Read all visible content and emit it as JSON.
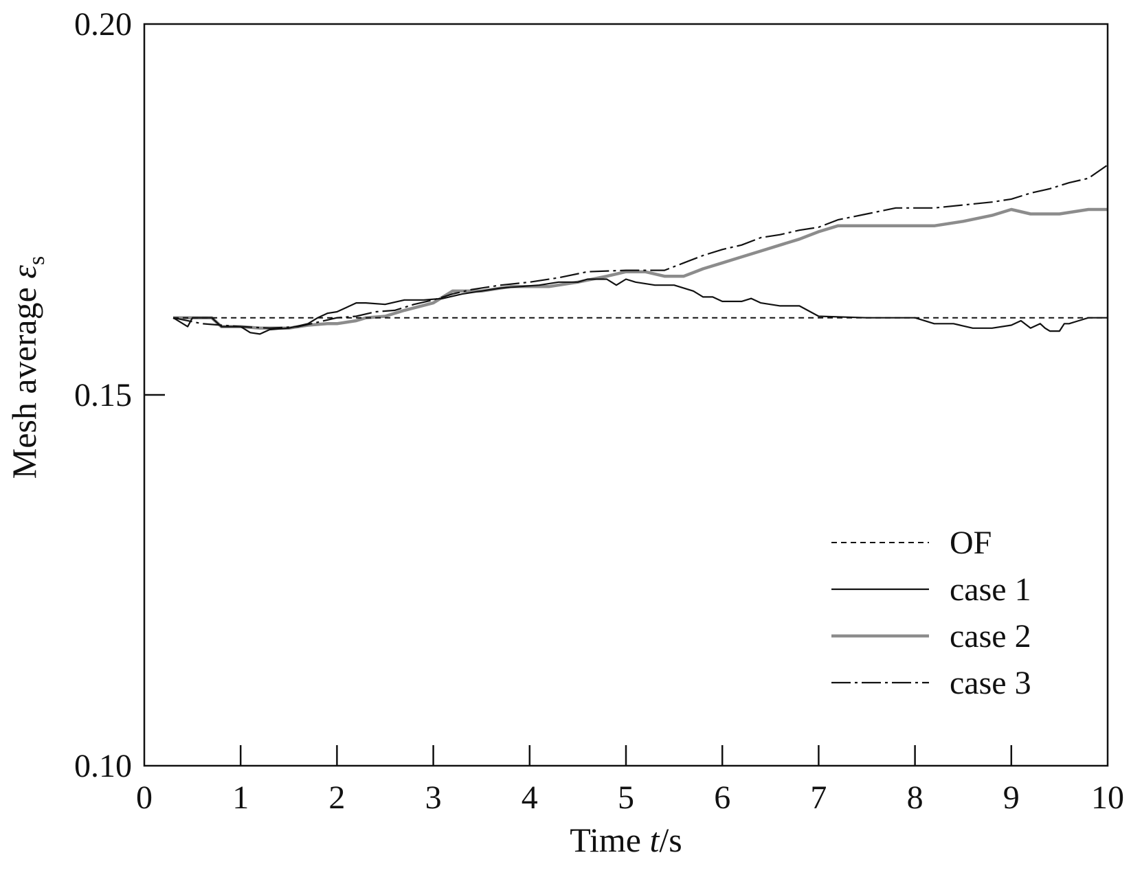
{
  "chart_data": {
    "type": "line",
    "xlabel_prefix": "Time ",
    "xlabel_var": "t",
    "xlabel_suffix": "/s",
    "ylabel_prefix": "Mesh average ",
    "ylabel_var": "ε",
    "ylabel_sub": "s",
    "xlim": [
      0,
      10
    ],
    "ylim": [
      0.1,
      0.2
    ],
    "x_ticks": [
      0,
      1,
      2,
      3,
      4,
      5,
      6,
      7,
      8,
      9,
      10
    ],
    "x_tick_labels": [
      "0",
      "1",
      "2",
      "3",
      "4",
      "5",
      "6",
      "7",
      "8",
      "9",
      "10"
    ],
    "y_ticks": [
      0.1,
      0.15,
      0.2
    ],
    "y_tick_labels": [
      "0.10",
      "0.15",
      "0.20"
    ],
    "grid": false,
    "legend_position": "lower-right",
    "series": [
      {
        "name": "OF",
        "style": "dashed",
        "color": "#111111",
        "x": [
          0.3,
          10
        ],
        "y": [
          0.1604,
          0.1604
        ]
      },
      {
        "name": "case 1",
        "style": "solid",
        "color": "#111111",
        "x": [
          0.3,
          0.45,
          0.5,
          0.7,
          0.8,
          1.0,
          1.1,
          1.2,
          1.3,
          1.5,
          1.7,
          1.8,
          1.9,
          2.0,
          2.1,
          2.2,
          2.3,
          2.5,
          2.7,
          2.9,
          3.1,
          3.3,
          3.5,
          3.7,
          3.9,
          4.1,
          4.3,
          4.5,
          4.6,
          4.8,
          4.9,
          5.0,
          5.1,
          5.3,
          5.5,
          5.7,
          5.8,
          5.9,
          6.0,
          6.2,
          6.3,
          6.4,
          6.6,
          6.8,
          7.0,
          7.5,
          8.0,
          8.2,
          8.4,
          8.6,
          8.8,
          9.0,
          9.1,
          9.2,
          9.3,
          9.35,
          9.4,
          9.5,
          9.55,
          9.6,
          9.7,
          9.8,
          10.0
        ],
        "y": [
          0.1604,
          0.1592,
          0.1604,
          0.1604,
          0.1592,
          0.1592,
          0.1584,
          0.1582,
          0.1588,
          0.159,
          0.1596,
          0.1604,
          0.161,
          0.1612,
          0.1618,
          0.1624,
          0.1624,
          0.1622,
          0.1628,
          0.1628,
          0.163,
          0.1636,
          0.164,
          0.1644,
          0.1646,
          0.1648,
          0.1652,
          0.1652,
          0.1656,
          0.1656,
          0.1648,
          0.1656,
          0.1652,
          0.1648,
          0.1648,
          0.164,
          0.1632,
          0.1632,
          0.1626,
          0.1626,
          0.163,
          0.1624,
          0.162,
          0.162,
          0.1606,
          0.1604,
          0.1604,
          0.1596,
          0.1596,
          0.159,
          0.159,
          0.1594,
          0.16,
          0.159,
          0.1596,
          0.159,
          0.1586,
          0.1586,
          0.1596,
          0.1596,
          0.16,
          0.1604,
          0.1604
        ]
      },
      {
        "name": "case 2",
        "style": "solid-thick",
        "color": "#8c8c8c",
        "x": [
          0.3,
          0.7,
          0.8,
          1.0,
          1.2,
          1.5,
          1.7,
          1.9,
          2.0,
          2.2,
          2.3,
          2.5,
          2.7,
          3.0,
          3.2,
          3.5,
          3.8,
          4.2,
          4.5,
          4.8,
          5.0,
          5.2,
          5.4,
          5.6,
          5.8,
          6.0,
          6.2,
          6.4,
          6.6,
          6.8,
          7.0,
          7.2,
          7.5,
          7.8,
          8.0,
          8.2,
          8.5,
          8.8,
          9.0,
          9.2,
          9.5,
          9.8,
          10.0
        ],
        "y": [
          0.1604,
          0.1604,
          0.1592,
          0.1592,
          0.159,
          0.159,
          0.1594,
          0.1596,
          0.1596,
          0.16,
          0.1604,
          0.1606,
          0.1614,
          0.1624,
          0.164,
          0.164,
          0.1646,
          0.1646,
          0.1652,
          0.166,
          0.1666,
          0.1666,
          0.166,
          0.166,
          0.167,
          0.1678,
          0.1686,
          0.1694,
          0.1702,
          0.171,
          0.172,
          0.1728,
          0.1728,
          0.1728,
          0.1728,
          0.1728,
          0.1734,
          0.1742,
          0.175,
          0.1744,
          0.1744,
          0.175,
          0.175
        ]
      },
      {
        "name": "case 3",
        "style": "dash-dot",
        "color": "#111111",
        "x": [
          0.3,
          0.6,
          0.8,
          1.0,
          1.3,
          1.6,
          1.8,
          2.0,
          2.2,
          2.4,
          2.6,
          2.8,
          3.0,
          3.2,
          3.4,
          3.7,
          4.0,
          4.3,
          4.6,
          5.0,
          5.2,
          5.4,
          5.6,
          5.8,
          6.0,
          6.2,
          6.4,
          6.6,
          6.8,
          7.0,
          7.2,
          7.5,
          7.8,
          8.0,
          8.2,
          8.5,
          8.8,
          9.0,
          9.2,
          9.4,
          9.6,
          9.8,
          10.0
        ],
        "y": [
          0.1604,
          0.1596,
          0.1594,
          0.1592,
          0.159,
          0.1592,
          0.1598,
          0.1604,
          0.1606,
          0.1612,
          0.1614,
          0.1622,
          0.1628,
          0.1636,
          0.1642,
          0.1648,
          0.1652,
          0.1658,
          0.1666,
          0.1668,
          0.1668,
          0.1668,
          0.1678,
          0.1688,
          0.1696,
          0.1702,
          0.1712,
          0.1716,
          0.1722,
          0.1726,
          0.1736,
          0.1744,
          0.1752,
          0.1752,
          0.1752,
          0.1756,
          0.176,
          0.1764,
          0.1772,
          0.1778,
          0.1786,
          0.1792,
          0.181
        ]
      }
    ]
  }
}
